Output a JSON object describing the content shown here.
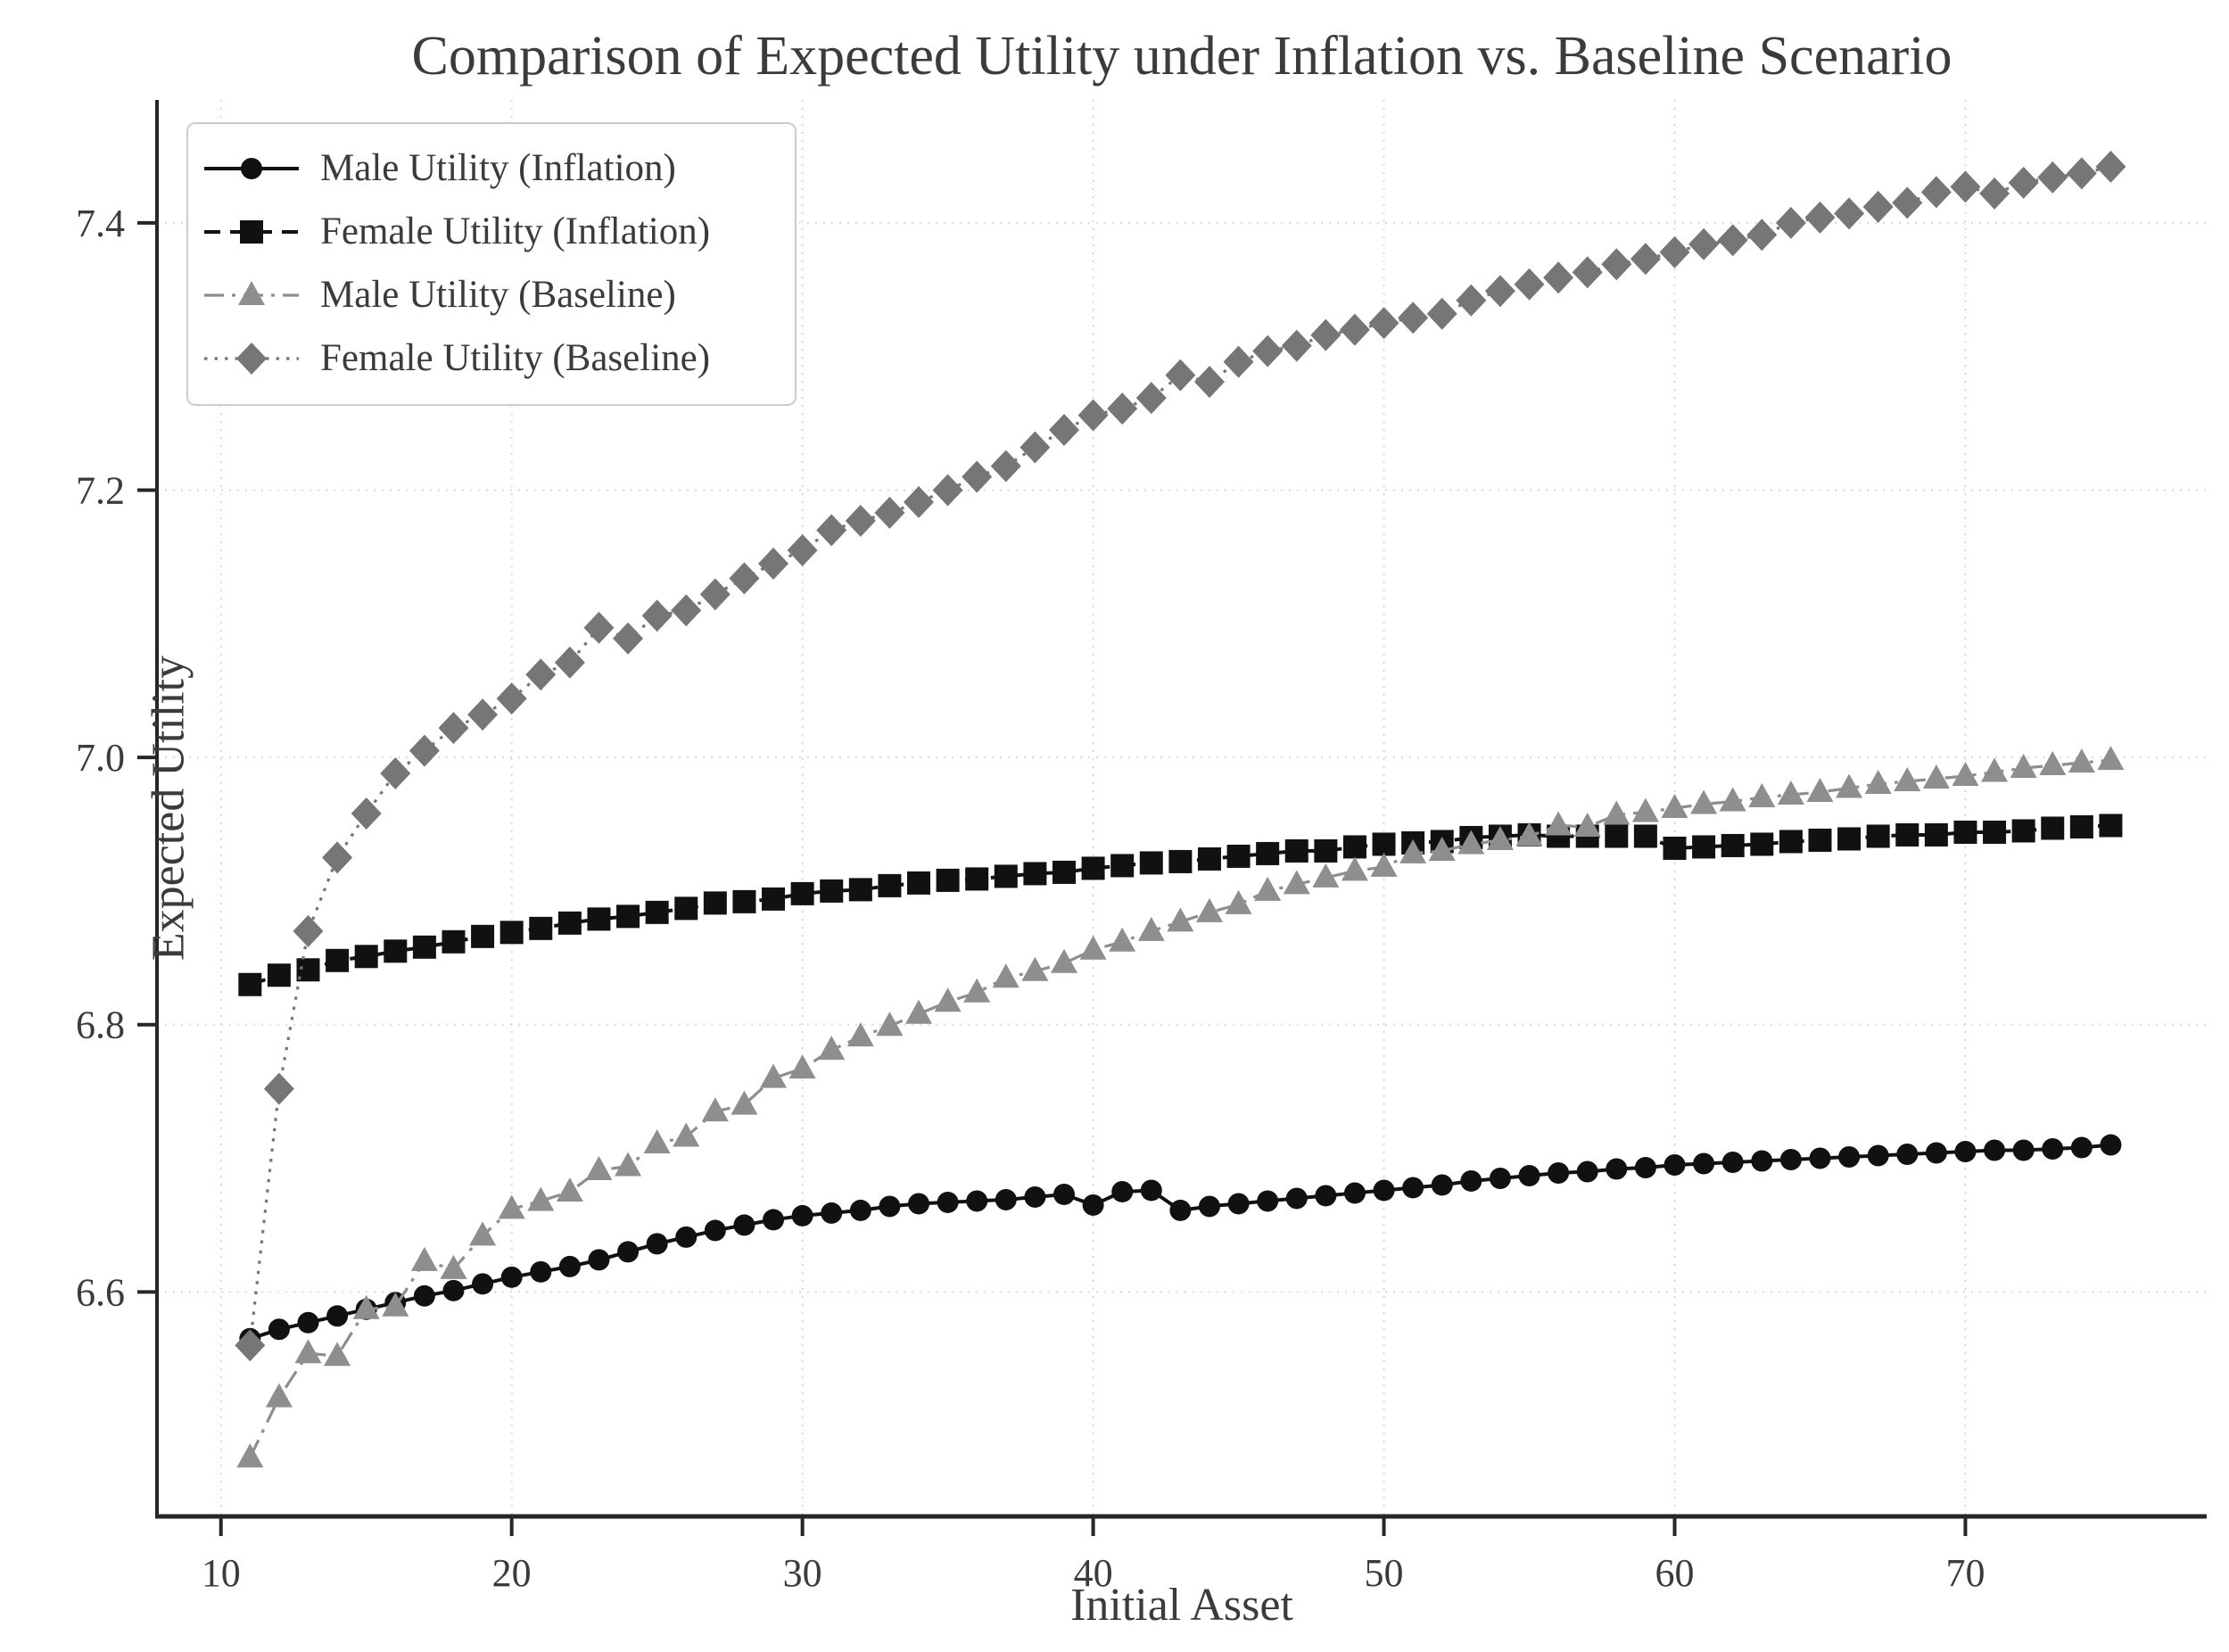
{
  "chart_data": {
    "type": "line",
    "title": "Comparison of Expected Utility under Inflation vs. Baseline Scenario",
    "xlabel": "Initial Asset",
    "ylabel": "Expected Utility",
    "xlim": [
      7.8,
      78.3
    ],
    "ylim": [
      6.432,
      7.492
    ],
    "x_ticks": [
      10,
      20,
      30,
      40,
      50,
      60,
      70
    ],
    "x_tick_labels": [
      "10",
      "20",
      "30",
      "40",
      "50",
      "60",
      "70"
    ],
    "y_ticks": [
      6.6,
      6.8,
      7.0,
      7.2,
      7.4
    ],
    "y_tick_labels": [
      "6.6",
      "6.8",
      "7.0",
      "7.2",
      "7.4"
    ],
    "grid": "dotted both axes, light gray",
    "legend_position": "upper left",
    "x": [
      11,
      12,
      13,
      14,
      15,
      16,
      17,
      18,
      19,
      20,
      21,
      22,
      23,
      24,
      25,
      26,
      27,
      28,
      29,
      30,
      31,
      32,
      33,
      34,
      35,
      36,
      37,
      38,
      39,
      40,
      41,
      42,
      43,
      44,
      45,
      46,
      47,
      48,
      49,
      50,
      51,
      52,
      53,
      54,
      55,
      56,
      57,
      58,
      59,
      60,
      61,
      62,
      63,
      64,
      65,
      66,
      67,
      68,
      69,
      70,
      71,
      72,
      73,
      74,
      75
    ],
    "series": [
      {
        "name": "Male Utility (Inflation)",
        "color": "#111111",
        "line_style": "solid",
        "marker": "circle",
        "values": [
          6.565,
          6.572,
          6.577,
          6.582,
          6.587,
          6.592,
          6.597,
          6.601,
          6.606,
          6.611,
          6.615,
          6.619,
          6.624,
          6.63,
          6.636,
          6.641,
          6.646,
          6.65,
          6.654,
          6.657,
          6.659,
          6.661,
          6.664,
          6.666,
          6.667,
          6.668,
          6.669,
          6.671,
          6.673,
          6.665,
          6.675,
          6.676,
          6.661,
          6.664,
          6.666,
          6.668,
          6.67,
          6.672,
          6.674,
          6.676,
          6.678,
          6.68,
          6.683,
          6.685,
          6.687,
          6.689,
          6.69,
          6.692,
          6.693,
          6.695,
          6.696,
          6.697,
          6.698,
          6.699,
          6.7,
          6.701,
          6.702,
          6.703,
          6.704,
          6.705,
          6.706,
          6.706,
          6.707,
          6.708,
          6.71
        ]
      },
      {
        "name": "Female Utility (Inflation)",
        "color": "#111111",
        "line_style": "dashed",
        "marker": "square",
        "values": [
          6.83,
          6.837,
          6.841,
          6.848,
          6.851,
          6.855,
          6.858,
          6.862,
          6.866,
          6.869,
          6.872,
          6.876,
          6.879,
          6.881,
          6.884,
          6.887,
          6.891,
          6.892,
          6.894,
          6.898,
          6.9,
          6.901,
          6.904,
          6.906,
          6.908,
          6.909,
          6.911,
          6.913,
          6.914,
          6.917,
          6.919,
          6.921,
          6.922,
          6.924,
          6.926,
          6.928,
          6.93,
          6.93,
          6.933,
          6.935,
          6.936,
          6.937,
          6.94,
          6.941,
          6.942,
          6.941,
          6.941,
          6.941,
          6.941,
          6.932,
          6.933,
          6.934,
          6.935,
          6.937,
          6.938,
          6.939,
          6.941,
          6.942,
          6.942,
          6.944,
          6.944,
          6.945,
          6.947,
          6.948,
          6.949
        ]
      },
      {
        "name": "Male Utility (Baseline)",
        "color": "#8e8e8e",
        "line_style": "dashdot",
        "marker": "triangle",
        "values": [
          6.476,
          6.521,
          6.554,
          6.552,
          6.587,
          6.589,
          6.623,
          6.617,
          6.642,
          6.662,
          6.668,
          6.675,
          6.691,
          6.694,
          6.711,
          6.716,
          6.735,
          6.74,
          6.76,
          6.767,
          6.781,
          6.791,
          6.799,
          6.808,
          6.817,
          6.824,
          6.835,
          6.84,
          6.846,
          6.856,
          6.862,
          6.87,
          6.877,
          6.884,
          6.89,
          6.9,
          6.905,
          6.91,
          6.915,
          6.918,
          6.928,
          6.93,
          6.935,
          6.938,
          6.941,
          6.949,
          6.948,
          6.957,
          6.959,
          6.962,
          6.965,
          6.967,
          6.97,
          6.972,
          6.974,
          6.977,
          6.98,
          6.982,
          6.984,
          6.986,
          6.989,
          6.992,
          6.994,
          6.996,
          6.998
        ]
      },
      {
        "name": "Female Utility (Baseline)",
        "color": "#767676",
        "line_style": "dotted",
        "marker": "diamond",
        "values": [
          6.56,
          6.752,
          6.87,
          6.925,
          6.958,
          6.988,
          7.005,
          7.022,
          7.032,
          7.044,
          7.062,
          7.071,
          7.097,
          7.089,
          7.106,
          7.11,
          7.122,
          7.134,
          7.145,
          7.155,
          7.17,
          7.177,
          7.183,
          7.191,
          7.2,
          7.21,
          7.218,
          7.232,
          7.245,
          7.256,
          7.261,
          7.269,
          7.286,
          7.281,
          7.296,
          7.304,
          7.308,
          7.316,
          7.32,
          7.325,
          7.329,
          7.332,
          7.342,
          7.349,
          7.354,
          7.359,
          7.363,
          7.369,
          7.373,
          7.378,
          7.384,
          7.387,
          7.391,
          7.4,
          7.404,
          7.407,
          7.412,
          7.415,
          7.423,
          7.427,
          7.422,
          7.43,
          7.434,
          7.437,
          7.442
        ]
      }
    ],
    "style": {
      "grid_color": "#d9d9d9",
      "spine_color": "#262626",
      "tick_label_color": "#3b3b3b",
      "title_color": "#3b3b3b",
      "background": "#ffffff"
    }
  }
}
